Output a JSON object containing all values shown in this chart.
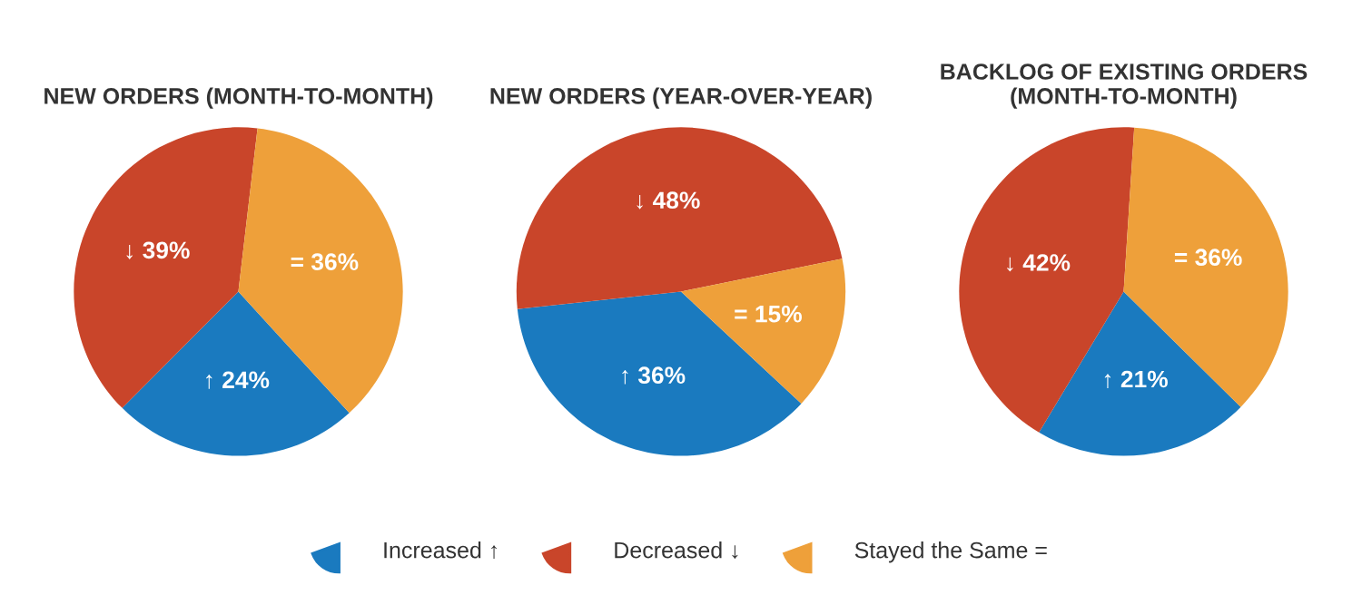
{
  "chart_data": [
    {
      "type": "pie",
      "title": "NEW ORDERS (MONTH-TO-MONTH)",
      "categories": [
        "Increased ↑",
        "Decreased ↓",
        "Stayed the Same ="
      ],
      "values": [
        24,
        39,
        36
      ],
      "colors": [
        "#1a7abf",
        "#c9452a",
        "#eea03a"
      ],
      "value_labels": [
        "↑ 24%",
        "↓ 39%",
        "= 36%"
      ],
      "legend": "bottom"
    },
    {
      "type": "pie",
      "title": "NEW ORDERS (YEAR-OVER-YEAR)",
      "categories": [
        null,
        null,
        null
      ],
      "values": [
        36,
        48,
        15
      ],
      "colors": [
        "#1a7abf",
        "#c9452a",
        "#eea03a"
      ],
      "value_labels": [
        "↑ 36%",
        "↓ 48%",
        "= 15%"
      ]
    },
    {
      "type": "pie",
      "title": "BACKLOG OF EXISTING ORDERS\n(MONTH-TO-MONTH)",
      "categories": [
        null,
        null,
        null
      ],
      "values": [
        21,
        42,
        36
      ],
      "colors": [
        "#1a7abf",
        "#c9452a",
        "#eea03a"
      ],
      "value_labels": [
        "↑ 21%",
        "↓ 42%",
        "= 36%"
      ]
    }
  ]
}
